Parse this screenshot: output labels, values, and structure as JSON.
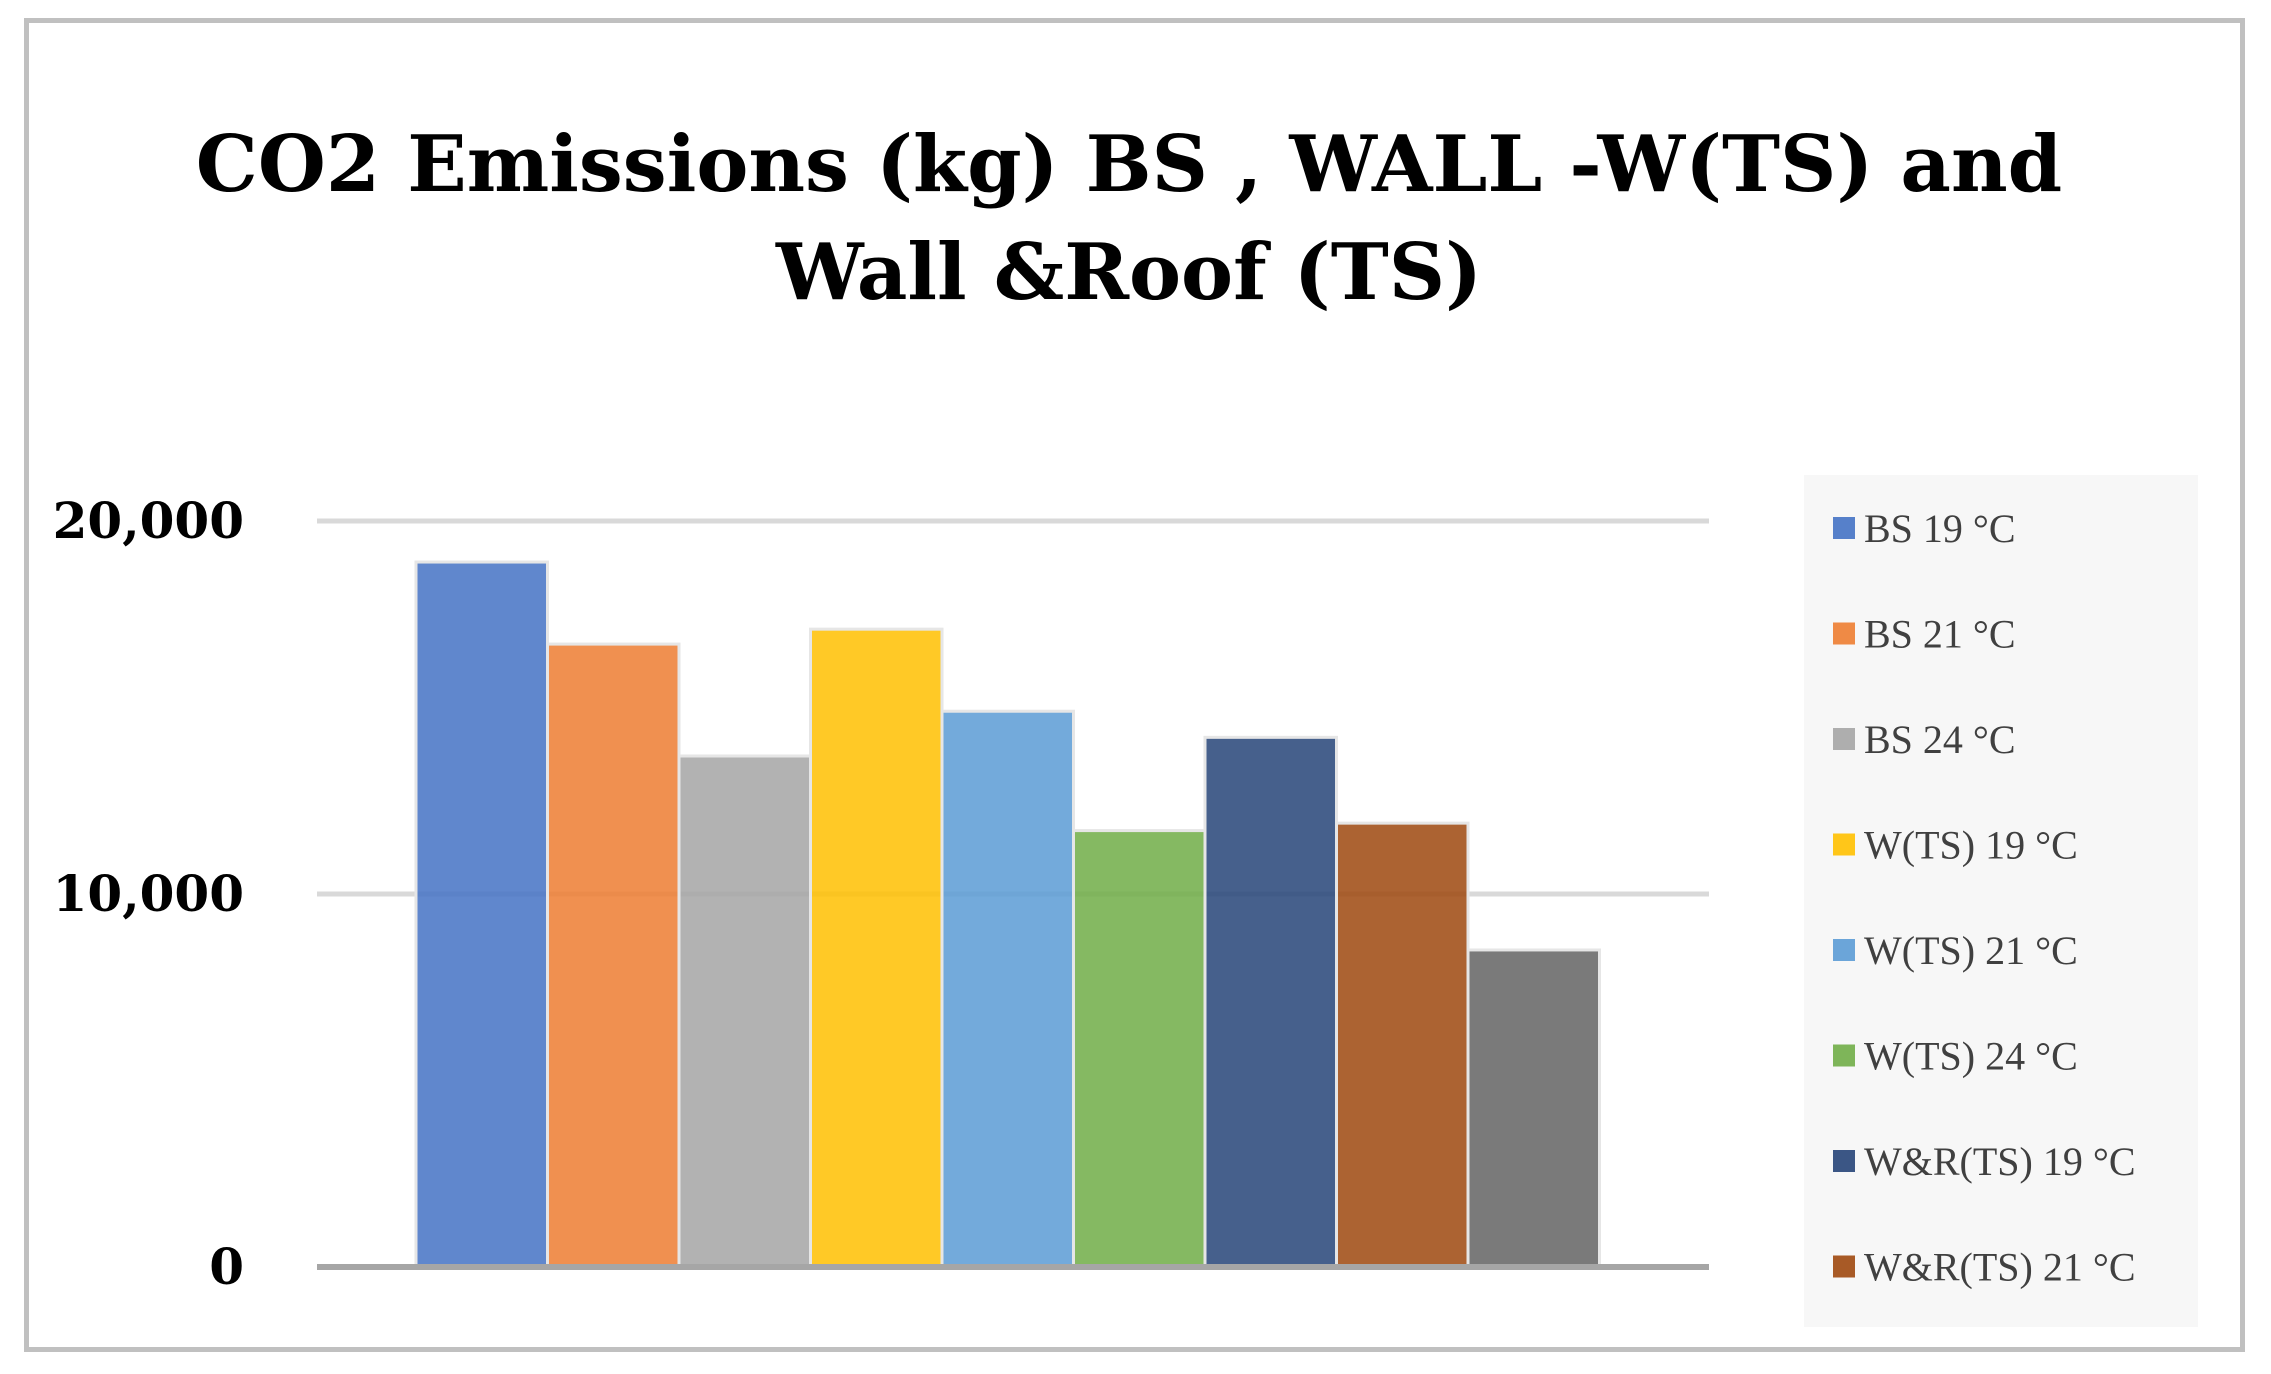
{
  "chart_data": {
    "type": "bar",
    "title_lines": [
      "CO2 Emissions (kg) BS , WALL -W(TS) and",
      "Wall &Roof  (TS)"
    ],
    "xlabel": "",
    "ylabel": "",
    "ylim": [
      0,
      20000
    ],
    "yticks": [
      {
        "value": 0,
        "label": "0"
      },
      {
        "value": 10000,
        "label": "10,000"
      },
      {
        "value": 20000,
        "label": "20,000"
      }
    ],
    "grid": true,
    "legend_position": "right",
    "series": [
      {
        "name": "BS 19 °C",
        "value": 18900,
        "color": "#4472C4"
      },
      {
        "name": "BS 21 °C",
        "value": 16700,
        "color": "#ED7D31"
      },
      {
        "name": "BS 24 °C",
        "value": 13700,
        "color": "#A5A5A5"
      },
      {
        "name": "W(TS) 19 °C",
        "value": 17100,
        "color": "#FFC000"
      },
      {
        "name": "W(TS) 21 °C",
        "value": 14900,
        "color": "#5B9BD5"
      },
      {
        "name": "W(TS) 24 °C",
        "value": 11700,
        "color": "#70AD47"
      },
      {
        "name": "W&R(TS) 19 °C",
        "value": 14200,
        "color": "#264478"
      },
      {
        "name": "W&R(TS) 21 °C",
        "value": 11900,
        "color": "#9E480E"
      },
      {
        "name": "",
        "value": 8500,
        "color": "#636363"
      }
    ],
    "legend_entries": [
      "BS 19 °C",
      "BS 21 °C",
      "BS 24 °C",
      "W(TS) 19 °C",
      "W(TS) 21 °C",
      "W(TS) 24 °C",
      "W&R(TS) 19 °C",
      "W&R(TS) 21 °C"
    ]
  }
}
